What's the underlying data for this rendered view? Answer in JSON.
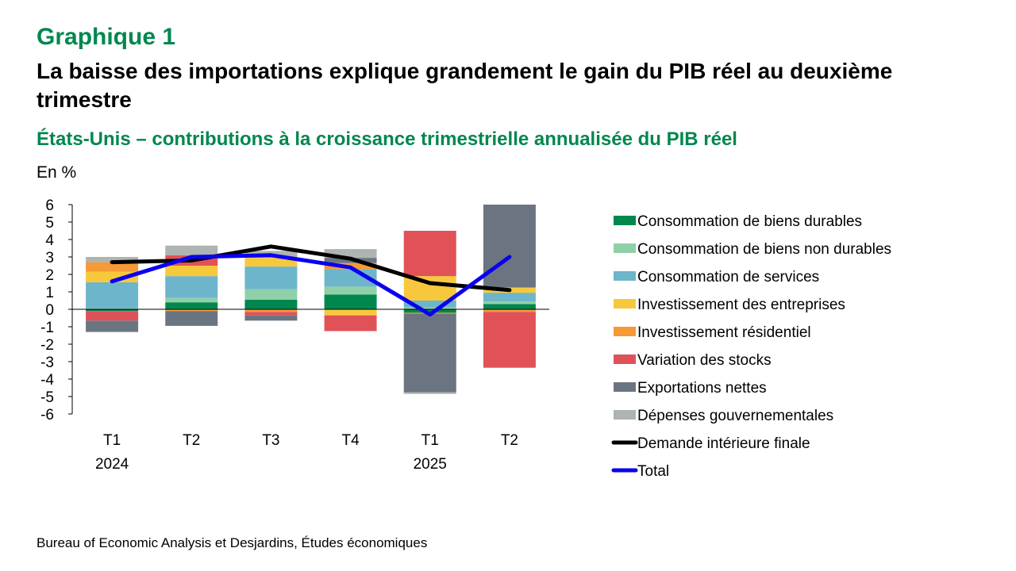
{
  "header": {
    "graph_label": "Graphique 1",
    "title": "La baisse des importations explique grandement le gain du PIB réel au deuxième trimestre",
    "subtitle": "États-Unis – contributions à la croissance trimestrielle annualisée du PIB réel",
    "unit": "En %"
  },
  "source": "Bureau of Economic Analysis et Desjardins, Études économiques",
  "chart_data": {
    "type": "bar",
    "stacked": true,
    "categories": [
      "T1",
      "T2",
      "T3",
      "T4",
      "T1",
      "T2"
    ],
    "year_labels": [
      "2024",
      "",
      "",
      "",
      "2025",
      ""
    ],
    "ylim": [
      -6,
      6
    ],
    "y_ticks": [
      "6",
      "5",
      "4",
      "3",
      "2",
      "1",
      "0",
      "-1",
      "-2",
      "-3",
      "-4",
      "-5",
      "-6"
    ],
    "grid": false,
    "legend_position": "right",
    "series": [
      {
        "name": "Consommation de biens durables",
        "color": "#00874e",
        "values": [
          -0.1,
          0.4,
          0.55,
          0.85,
          -0.2,
          0.3
        ]
      },
      {
        "name": "Consommation de biens non durables",
        "color": "#90d0a8",
        "values": [
          0.05,
          0.25,
          0.6,
          0.45,
          0.1,
          0.15
        ]
      },
      {
        "name": "Consommation de services",
        "color": "#6db5ca",
        "values": [
          1.5,
          1.25,
          1.3,
          1.0,
          0.4,
          0.5
        ]
      },
      {
        "name": "Investissement des entreprises",
        "color": "#f8c83c",
        "values": [
          0.6,
          0.6,
          0.5,
          -0.35,
          1.4,
          0.3
        ]
      },
      {
        "name": "Investissement résidentiel",
        "color": "#f59a36",
        "values": [
          0.55,
          -0.1,
          -0.15,
          0.35,
          -0.05,
          -0.15
        ]
      },
      {
        "name": "Variation des stocks",
        "color": "#e05258",
        "values": [
          -0.55,
          0.6,
          -0.2,
          -0.9,
          2.6,
          -3.2
        ]
      },
      {
        "name": "Exportations nettes",
        "color": "#6b7582",
        "values": [
          -0.65,
          -0.85,
          -0.3,
          0.3,
          -4.5,
          4.75
        ]
      },
      {
        "name": "Dépenses gouvernementales",
        "color": "#aeb4b0",
        "values": [
          0.3,
          0.55,
          0.4,
          0.5,
          -0.1,
          0.0
        ]
      }
    ],
    "lines": [
      {
        "name": "Demande intérieure finale",
        "color": "#000000",
        "values": [
          2.7,
          2.8,
          3.6,
          2.9,
          1.5,
          1.1
        ]
      },
      {
        "name": "Total",
        "color": "#0a00f0",
        "values": [
          1.6,
          3.0,
          3.1,
          2.4,
          -0.3,
          3.0
        ]
      }
    ]
  }
}
